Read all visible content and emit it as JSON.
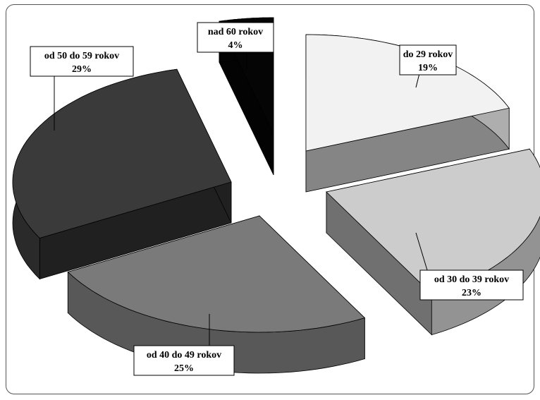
{
  "chart_data": {
    "type": "pie",
    "style": "3d-exploded",
    "title": "",
    "legend": "none",
    "slices": [
      {
        "label": "do 29 rokov",
        "value": 19,
        "value_label": "19%",
        "color": "#f2f2f2"
      },
      {
        "label": "od 30 do 39 rokov",
        "value": 23,
        "value_label": "23%",
        "color": "#cccccc"
      },
      {
        "label": "od 40 do 49 rokov",
        "value": 25,
        "value_label": "25%",
        "color": "#7a7a7a"
      },
      {
        "label": "od 50 do 59 rokov",
        "value": 29,
        "value_label": "29%",
        "color": "#3a3a3a"
      },
      {
        "label": "nad 60 rokov",
        "value": 4,
        "value_label": "4%",
        "color": "#050505"
      }
    ]
  }
}
